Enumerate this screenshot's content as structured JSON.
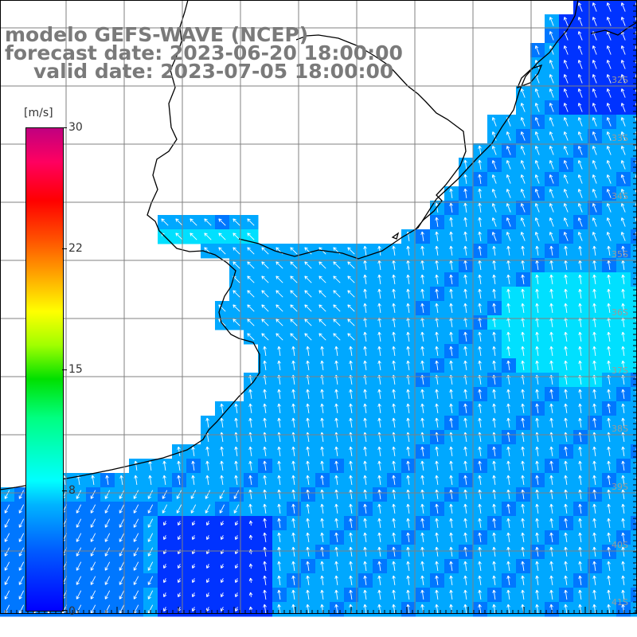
{
  "title": {
    "line1": "modelo GEFS-WAVE (NCEP)",
    "line2": "forecast date: 2023-06-20 18:00:00",
    "line3": "valid date: 2023-07-05 18:00:00"
  },
  "colorbar": {
    "unit": "[m/s]",
    "ticks": [
      "30",
      "22",
      "15",
      "8",
      "0"
    ],
    "tick_values": [
      30,
      22,
      15,
      8,
      0
    ],
    "min": 0,
    "max": 30,
    "colors": [
      "#0000ff",
      "#00b4ff",
      "#00ffff",
      "#00ff80",
      "#00e000",
      "#ffff00",
      "#ff5000",
      "#ff0000",
      "#c00080"
    ]
  },
  "map": {
    "land_color": "#ffffff",
    "coast_color": "#000000",
    "grid_color": "#808080",
    "arrow_color": "#ffffff",
    "field_colors": {
      "deep": "#0033ff",
      "mid": "#0077ff",
      "light": "#00a8ff",
      "cyan": "#00e0ff"
    },
    "lat_labels": [
      "32S",
      "33S",
      "34S",
      "35S",
      "36S",
      "37S",
      "38S",
      "39S",
      "40S",
      "41S"
    ]
  }
}
